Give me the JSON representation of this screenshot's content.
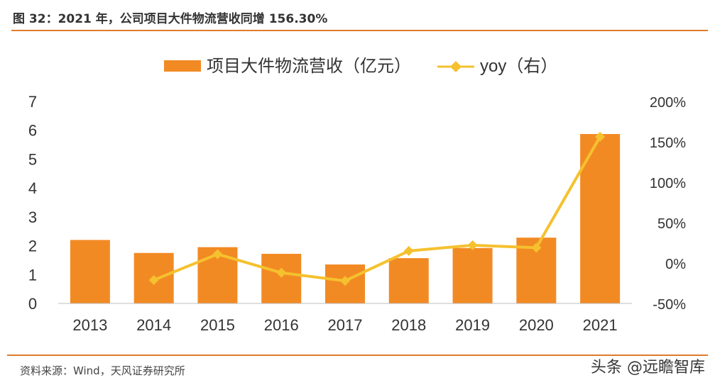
{
  "header": {
    "title": "图 32：2021 年，公司项目大件物流营收同增 156.30%"
  },
  "footer": {
    "source": "资料来源：Wind，天风证券研究所",
    "watermark": "头条 @远瞻智库"
  },
  "colors": {
    "bar": "#F28A24",
    "line": "#F5C12E",
    "rule": "#E07B2B",
    "axis_text": "#333333"
  },
  "chart_data": {
    "type": "bar",
    "categories": [
      "2013",
      "2014",
      "2015",
      "2016",
      "2017",
      "2018",
      "2019",
      "2020",
      "2021"
    ],
    "series": [
      {
        "name": "项目大件物流营收（亿元）",
        "type": "bar",
        "axis": "left",
        "values": [
          2.2,
          1.75,
          1.95,
          1.72,
          1.35,
          1.57,
          1.92,
          2.28,
          5.87
        ]
      },
      {
        "name": "yoy（右）",
        "type": "line",
        "axis": "right",
        "marker": "diamond",
        "values": [
          null,
          -0.21,
          0.11,
          -0.12,
          -0.22,
          0.15,
          0.22,
          0.19,
          1.563
        ]
      }
    ],
    "left_axis": {
      "ticks": [
        "0",
        "1",
        "2",
        "3",
        "4",
        "5",
        "6",
        "7"
      ],
      "ylim": [
        0,
        7
      ]
    },
    "right_axis": {
      "ticks": [
        "-50%",
        "0%",
        "50%",
        "100%",
        "150%",
        "200%"
      ],
      "ylim": [
        -0.5,
        2.0
      ]
    },
    "legend_position": "top-center",
    "grid": false
  }
}
